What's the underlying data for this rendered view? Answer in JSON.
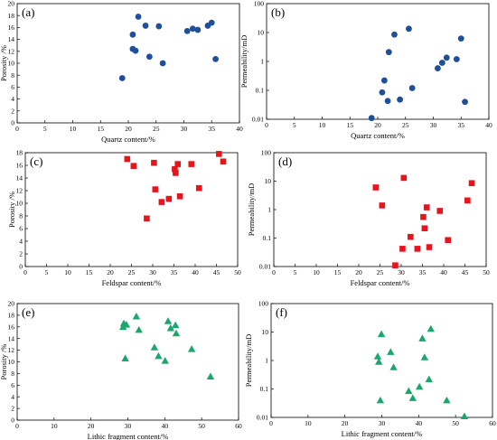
{
  "chart_data": [
    {
      "type": "scatter",
      "panel_label": "(a)",
      "xlabel": "Quartz content/%",
      "ylabel": "Porosity /%",
      "xlim": [
        0,
        40
      ],
      "ylim": [
        0,
        20
      ],
      "yscale": "linear",
      "xticks": [
        0,
        5,
        10,
        15,
        20,
        25,
        30,
        35,
        40
      ],
      "yticks": [
        0,
        2,
        4,
        6,
        8,
        10,
        12,
        14,
        16,
        18,
        20
      ],
      "marker": "circle",
      "color": "#1f4e9a",
      "x": [
        18.9,
        20.8,
        20.8,
        21.3,
        21.8,
        23.1,
        23.8,
        25.5,
        26.2,
        30.6,
        31.6,
        32.5,
        34.3,
        35.0,
        35.7
      ],
      "y": [
        7.5,
        14.8,
        12.4,
        12.1,
        17.8,
        16.3,
        11.1,
        16.2,
        10.0,
        15.4,
        15.8,
        15.6,
        16.3,
        16.8,
        10.7
      ]
    },
    {
      "type": "scatter",
      "panel_label": "(b)",
      "xlabel": "Quartz content/%",
      "ylabel": "Permeability/mD",
      "xlim": [
        0,
        40
      ],
      "ylim": [
        0.01,
        100
      ],
      "yscale": "log",
      "xticks": [
        0,
        5,
        10,
        15,
        20,
        25,
        30,
        35,
        40
      ],
      "yticks": [
        0.01,
        0.1,
        1,
        10,
        100
      ],
      "ytick_labels": [
        "0.01",
        "0.1",
        "1",
        "10",
        "100"
      ],
      "marker": "circle",
      "color": "#1f4e9a",
      "x": [
        18.9,
        20.8,
        21.2,
        21.8,
        22.0,
        23.0,
        24.0,
        25.6,
        26.2,
        30.8,
        31.6,
        32.4,
        34.2,
        35.0,
        35.7
      ],
      "y": [
        0.011,
        0.085,
        0.22,
        0.043,
        2.1,
        8.5,
        0.048,
        13.5,
        0.12,
        0.58,
        0.9,
        1.35,
        1.2,
        6.2,
        0.04
      ]
    },
    {
      "type": "scatter",
      "panel_label": "(c)",
      "xlabel": "Feldspar content/%",
      "ylabel": "Porosity /%",
      "xlim": [
        0,
        50
      ],
      "ylim": [
        0,
        18
      ],
      "yscale": "linear",
      "xticks": [
        0,
        5,
        10,
        15,
        20,
        25,
        30,
        35,
        40,
        45,
        50
      ],
      "yticks": [
        0,
        2,
        4,
        6,
        8,
        10,
        12,
        14,
        16,
        18
      ],
      "marker": "square",
      "color": "#e8131b",
      "x": [
        24.0,
        25.5,
        28.6,
        30.3,
        30.6,
        32.1,
        33.8,
        35.2,
        35.4,
        35.9,
        36.4,
        39.1,
        40.9,
        45.6,
        46.6
      ],
      "y": [
        17.0,
        15.9,
        7.6,
        16.4,
        12.2,
        10.2,
        10.7,
        15.4,
        14.8,
        16.2,
        11.1,
        16.2,
        12.4,
        17.8,
        16.6
      ]
    },
    {
      "type": "scatter",
      "panel_label": "(d)",
      "xlabel": "Feldspar content/%",
      "ylabel": "Permeability/mD",
      "xlim": [
        0,
        50
      ],
      "ylim": [
        0.01,
        100
      ],
      "yscale": "log",
      "xticks": [
        0,
        5,
        10,
        15,
        20,
        25,
        30,
        35,
        40,
        45,
        50
      ],
      "yticks": [
        0.01,
        0.1,
        1,
        10,
        100
      ],
      "ytick_labels": [
        "0.01",
        "0.1",
        "1",
        "10",
        "100"
      ],
      "marker": "square",
      "color": "#e8131b",
      "x": [
        24.0,
        25.5,
        28.6,
        30.3,
        30.6,
        32.2,
        33.8,
        35.2,
        35.5,
        36.0,
        36.6,
        39.1,
        41.0,
        45.6,
        46.6
      ],
      "y": [
        6.0,
        1.4,
        0.011,
        0.042,
        13.0,
        0.11,
        0.042,
        0.55,
        0.22,
        1.2,
        0.048,
        0.9,
        0.085,
        2.1,
        8.5
      ]
    },
    {
      "type": "scatter",
      "panel_label": "(e)",
      "xlabel": "Lithic fragment content/%",
      "ylabel": "Porosity /%",
      "xlim": [
        0,
        60
      ],
      "ylim": [
        0,
        20
      ],
      "yscale": "linear",
      "xticks": [
        0,
        10,
        20,
        30,
        40,
        50,
        60
      ],
      "yticks": [
        0,
        2,
        4,
        6,
        8,
        10,
        12,
        14,
        16,
        18,
        20
      ],
      "marker": "triangle",
      "color": "#1aa86a",
      "x": [
        28.7,
        28.9,
        29.3,
        29.6,
        32.3,
        33.0,
        37.2,
        38.3,
        40.1,
        40.9,
        41.6,
        42.9,
        43.1,
        47.3,
        52.4
      ],
      "y": [
        16.0,
        16.6,
        10.6,
        16.4,
        17.8,
        15.5,
        12.5,
        11.0,
        10.2,
        17.0,
        15.8,
        16.3,
        14.9,
        12.2,
        7.5
      ]
    },
    {
      "type": "scatter",
      "panel_label": "(f)",
      "xlabel": "Lithic fragment content/%",
      "ylabel": "Permeability/mD",
      "xlim": [
        0,
        60
      ],
      "ylim": [
        0.01,
        100
      ],
      "yscale": "log",
      "xticks": [
        0,
        10,
        20,
        30,
        40,
        50,
        60
      ],
      "yticks": [
        0.01,
        0.1,
        1,
        10,
        100
      ],
      "ytick_labels": [
        "0.01",
        "0.1",
        "1",
        "10",
        "100"
      ],
      "marker": "triangle",
      "color": "#1aa86a",
      "x": [
        28.9,
        29.2,
        29.6,
        29.9,
        32.4,
        33.2,
        37.3,
        38.4,
        40.2,
        41.0,
        41.6,
        42.8,
        43.3,
        47.6,
        52.4
      ],
      "y": [
        1.4,
        0.9,
        0.04,
        8.5,
        2.0,
        0.58,
        0.085,
        0.048,
        0.12,
        6.0,
        1.3,
        0.22,
        13.0,
        0.04,
        0.011
      ]
    }
  ]
}
